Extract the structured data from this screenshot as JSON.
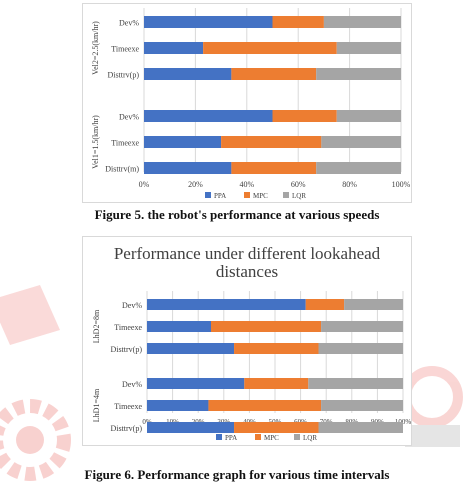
{
  "caption1": "Figure 5. the robot's performance at various speeds",
  "caption2": "Figure 6. Performance graph for various time intervals",
  "colors": {
    "PPA": "#4472c4",
    "MPC": "#ed7d31",
    "LQR": "#a5a5a5",
    "watermark_red": "#e4312b",
    "watermark_gray": "#7f7f7f"
  },
  "chart_data": [
    {
      "type": "bar",
      "orientation": "horizontal",
      "stacked": "percent",
      "title": "",
      "legend": {
        "position": "bottom",
        "entries": [
          "PPA",
          "MPC",
          "LQR"
        ]
      },
      "xlim": [
        0,
        100
      ],
      "x_ticks": [
        "0%",
        "20%",
        "40%",
        "60%",
        "80%",
        "100%"
      ],
      "grid": true,
      "groups": [
        {
          "label": "Vel2=2.5(km/hr)",
          "categories": [
            "Dev%",
            "Timeexe",
            "Disttrv(p)"
          ],
          "series": [
            {
              "name": "PPA",
              "values": [
                50,
                23,
                34
              ]
            },
            {
              "name": "MPC",
              "values": [
                20,
                52,
                33
              ]
            },
            {
              "name": "LQR",
              "values": [
                30,
                25,
                33
              ]
            }
          ]
        },
        {
          "label": "Vel1=1.5(km/hr)",
          "categories": [
            "Dev%",
            "Timeexe",
            "Disttrv(m)"
          ],
          "series": [
            {
              "name": "PPA",
              "values": [
                50,
                30,
                34
              ]
            },
            {
              "name": "MPC",
              "values": [
                25,
                39,
                33
              ]
            },
            {
              "name": "LQR",
              "values": [
                25,
                31,
                33
              ]
            }
          ]
        }
      ]
    },
    {
      "type": "bar",
      "orientation": "horizontal",
      "stacked": "percent",
      "title": "Performance under different lookahead distances",
      "legend": {
        "position": "bottom",
        "entries": [
          "PPA",
          "MPC",
          "LQR"
        ]
      },
      "xlim": [
        0,
        100
      ],
      "x_ticks": [
        "0%",
        "10%",
        "20%",
        "30%",
        "40%",
        "50%",
        "60%",
        "70%",
        "80%",
        "90%",
        "100%"
      ],
      "grid": true,
      "groups": [
        {
          "label": "LhD2=8m",
          "categories": [
            "Dev%",
            "Timeexe",
            "Disttrv(p)"
          ],
          "series": [
            {
              "name": "PPA",
              "values": [
                62,
                25,
                34
              ]
            },
            {
              "name": "MPC",
              "values": [
                15,
                43,
                33
              ]
            },
            {
              "name": "LQR",
              "values": [
                23,
                32,
                33
              ]
            }
          ]
        },
        {
          "label": "LhD1=4m",
          "categories": [
            "Dev%",
            "Timeexe",
            "Disttrv(p)"
          ],
          "series": [
            {
              "name": "PPA",
              "values": [
                38,
                24,
                34
              ]
            },
            {
              "name": "MPC",
              "values": [
                25,
                44,
                33
              ]
            },
            {
              "name": "LQR",
              "values": [
                37,
                32,
                33
              ]
            }
          ]
        }
      ]
    }
  ]
}
